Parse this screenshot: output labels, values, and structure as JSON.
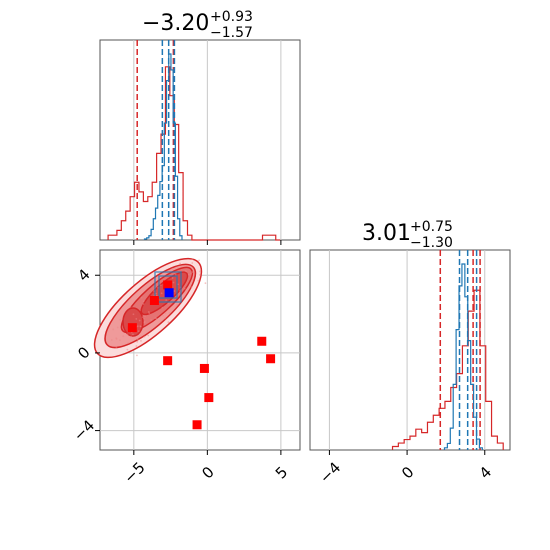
{
  "chart_data": [
    {
      "type": "histogram",
      "panel": "x-marginal",
      "title": {
        "median": "−3.20",
        "plus": "+0.93",
        "minus": "−1.57"
      },
      "xlim": [
        -7.3,
        6.3
      ],
      "xticks": [
        -5,
        0,
        5
      ],
      "series": [
        {
          "color": "#d62728",
          "bins_x": [
            -6.6,
            -6.3,
            -6.0,
            -5.7,
            -5.4,
            -5.1,
            -4.8,
            -4.5,
            -4.2,
            -3.9,
            -3.6,
            -3.3,
            -3.0,
            -2.7,
            -2.4,
            -2.1,
            -1.8,
            -1.5,
            -1.2,
            -0.9,
            -0.6,
            -0.3,
            0.0,
            0.3,
            0.6,
            0.9,
            1.2,
            1.5,
            1.8,
            2.1,
            2.4,
            2.7,
            3.0,
            3.3,
            3.6,
            3.9,
            4.2,
            4.5,
            4.8
          ],
          "counts": [
            1,
            1,
            2,
            4,
            6,
            9,
            12,
            10,
            8,
            9,
            12,
            18,
            22,
            36,
            30,
            24,
            14,
            4,
            1,
            0,
            0,
            0,
            0,
            0,
            0,
            0,
            0,
            0,
            0,
            0,
            0,
            0,
            0,
            0,
            0,
            1,
            1,
            1,
            0
          ],
          "quantiles": [
            -4.77,
            -2.31,
            -2.27
          ]
        },
        {
          "color": "#1f77b4",
          "bins_x": [
            -4.2,
            -4.05,
            -3.9,
            -3.75,
            -3.6,
            -3.45,
            -3.3,
            -3.15,
            -3.0,
            -2.85,
            -2.7,
            -2.55,
            -2.4,
            -2.25,
            -2.1,
            -1.95,
            -1.8
          ],
          "counts": [
            1,
            2,
            4,
            10,
            20,
            30,
            42,
            55,
            70,
            110,
            150,
            175,
            160,
            110,
            60,
            20,
            4
          ],
          "quantiles": [
            -3.06,
            -2.63,
            -2.24
          ]
        }
      ]
    },
    {
      "type": "contour+scatter",
      "panel": "joint",
      "xlim": [
        -7.3,
        6.3
      ],
      "ylim": [
        -5.0,
        5.3
      ],
      "xticks": [
        -5,
        0,
        5
      ],
      "yticks": [
        -4,
        0,
        4
      ],
      "red_squares": [
        [
          -5.1,
          1.3
        ],
        [
          -3.6,
          2.7
        ],
        [
          -2.7,
          3.5
        ],
        [
          -2.7,
          -0.4
        ],
        [
          -0.2,
          -0.8
        ],
        [
          0.1,
          -2.3
        ],
        [
          -0.7,
          -3.7
        ],
        [
          3.7,
          0.6
        ],
        [
          4.3,
          -0.3
        ]
      ],
      "blue_square": [
        -2.6,
        3.1
      ]
    },
    {
      "type": "histogram",
      "panel": "y-marginal",
      "title": {
        "median": "3.01",
        "plus": "+0.75",
        "minus": "−1.30"
      },
      "xlim": [
        -5.0,
        5.3
      ],
      "xticks": [
        -4,
        0,
        4
      ],
      "series": [
        {
          "color": "#d62728",
          "bins_x": [
            -0.6,
            -0.3,
            0.0,
            0.3,
            0.6,
            0.9,
            1.2,
            1.5,
            1.8,
            2.1,
            2.4,
            2.7,
            3.0,
            3.3,
            3.6,
            3.9,
            4.2,
            4.5,
            4.8
          ],
          "counts": [
            1,
            2,
            3,
            4,
            6,
            5,
            8,
            10,
            12,
            14,
            18,
            22,
            30,
            40,
            46,
            30,
            14,
            4,
            2
          ],
          "quantiles": [
            1.71,
            3.4,
            3.76
          ]
        },
        {
          "color": "#1f77b4",
          "bins_x": [
            2.0,
            2.15,
            2.3,
            2.45,
            2.6,
            2.75,
            2.9,
            3.05,
            3.2,
            3.35,
            3.5,
            3.65,
            3.8
          ],
          "counts": [
            2,
            6,
            20,
            60,
            110,
            150,
            170,
            140,
            100,
            60,
            30,
            10,
            2
          ],
          "quantiles": [
            2.7,
            3.12,
            3.58
          ]
        }
      ]
    }
  ],
  "colors": {
    "red": "#d62728",
    "blue": "#1f77b4",
    "grid": "#c8c8c8",
    "axis": "#555555"
  }
}
